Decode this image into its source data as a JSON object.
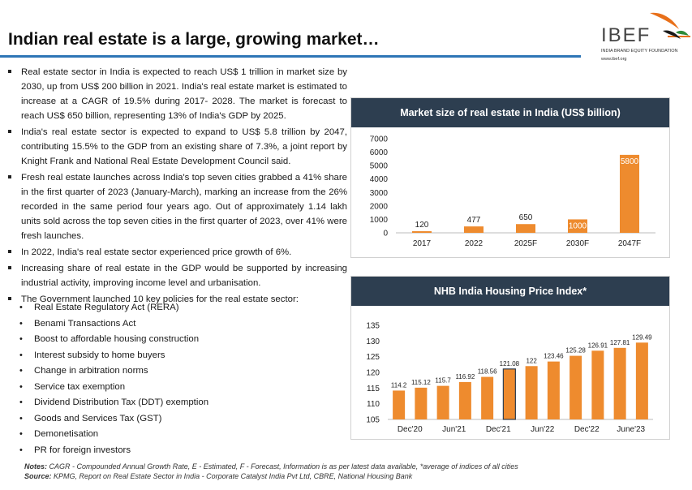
{
  "page": {
    "title": "Indian real estate is a large, growing market…"
  },
  "logo": {
    "name": "IBEF",
    "subtitle": "INDIA BRAND EQUITY FOUNDATION",
    "url": "www.ibef.org"
  },
  "bullets": [
    "Real estate sector in India is expected to reach US$ 1 trillion in market size by 2030, up from US$ 200 billion in 2021. India's real estate market is estimated to increase at a CAGR of 19.5% during 2017- 2028. The market is forecast to reach US$ 650 billion, representing 13% of India's GDP by 2025.",
    "India's real estate sector is expected to expand to US$ 5.8 trillion by 2047, contributing 15.5% to the GDP from an existing share of 7.3%, a joint report by Knight Frank and National Real Estate Development Council said.",
    "Fresh real estate launches across India's top seven cities grabbed a 41% share in the first quarter of 2023 (January-March), marking an increase from the 26% recorded in the same period four years ago. Out of approximately 1.14 lakh units sold across the top seven cities in the first quarter of 2023, over 41% were fresh launches.",
    "In 2022, India's real estate sector experienced price growth of 6%.",
    "Increasing share of real estate in the GDP would be supported by increasing industrial activity, improving income level and urbanisation.",
    "The Government launched 10 key policies for the real estate sector:"
  ],
  "policies": [
    "Real Estate Regulatory Act (RERA)",
    "Benami Transactions Act",
    "Boost to affordable housing construction",
    "Interest subsidy to home buyers",
    "Change in arbitration norms",
    "Service tax exemption",
    "Dividend Distribution Tax (DDT) exemption",
    "Goods and Services Tax (GST)",
    "Demonetisation",
    "PR for foreign investors"
  ],
  "footer": {
    "notes_label": "Notes:",
    "notes_text": " CAGR - Compounded Annual Growth Rate, E - Estimated, F - Forecast, Information is as per latest data available, *average of indices of all cities",
    "source_label": "Source:",
    "source_text": " KPMG, Report on Real Estate Sector in India - Corporate Catalyst India Pvt Ltd, CBRE, National Housing Bank"
  },
  "colors": {
    "bar": "#ee8b2e",
    "header": "#2d3e50",
    "accent": "#2e75b6"
  },
  "chart_data": [
    {
      "type": "bar",
      "title": "Market size of real estate in India (US$ billion)",
      "categories": [
        "2017",
        "2022",
        "2025F",
        "2030F",
        "2047F"
      ],
      "values": [
        120,
        477,
        650,
        1000,
        5800
      ],
      "labels": [
        "120",
        "477",
        "650",
        "1000",
        "5800"
      ],
      "ylim": [
        0,
        7000
      ],
      "yticks": [
        0,
        1000,
        2000,
        3000,
        4000,
        5000,
        6000,
        7000
      ],
      "xlabel": "",
      "ylabel": ""
    },
    {
      "type": "bar",
      "title": "NHB India Housing Price Index*",
      "categories": [
        "Dec'20",
        "",
        "Jun'21",
        "",
        "Dec'21",
        "",
        "Jun'22",
        "",
        "Dec'22",
        "",
        "June'23",
        ""
      ],
      "xtick_labels": [
        "Dec'20",
        "Jun'21",
        "Dec'21",
        "Jun'22",
        "Dec'22",
        "June'23"
      ],
      "values": [
        114.2,
        115.12,
        115.7,
        116.92,
        118.56,
        121.08,
        122,
        123.46,
        125.28,
        126.91,
        127.81,
        129.49
      ],
      "labels": [
        "114.2",
        "115.12",
        "115.7",
        "116.92",
        "118.56",
        "121.08",
        "122",
        "123.46",
        "125.28",
        "126.91",
        "127.81",
        "129.49"
      ],
      "highlight_index": 5,
      "ylim": [
        105,
        135
      ],
      "yticks": [
        105,
        110,
        115,
        120,
        125,
        130,
        135
      ],
      "xlabel": "",
      "ylabel": ""
    }
  ]
}
